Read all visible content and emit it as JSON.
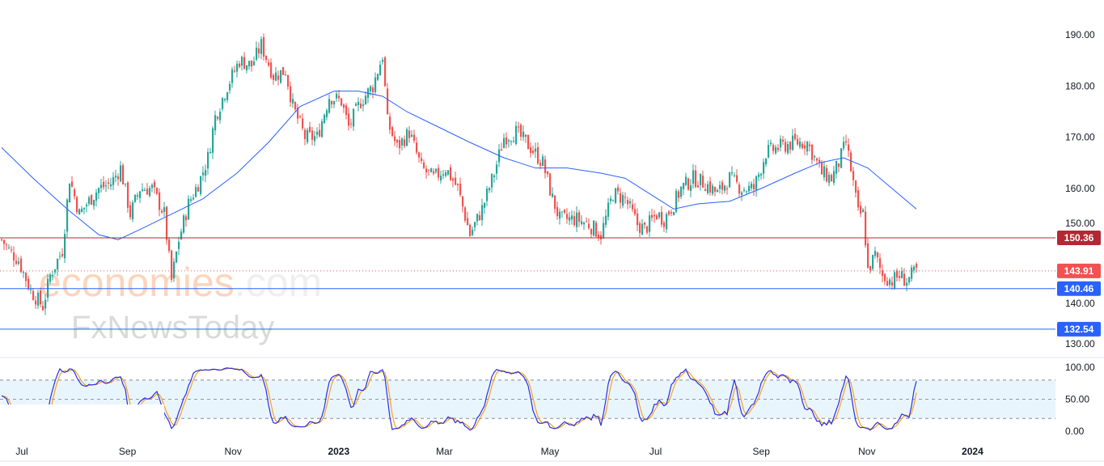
{
  "chart_data": {
    "type": "candlestick",
    "price_axis": {
      "min": 130,
      "max": 190,
      "ticks": [
        "190.00",
        "180.00",
        "170.00",
        "160.00",
        "150.00",
        "140.00",
        "130.00"
      ]
    },
    "time_axis": {
      "labels": [
        "Jul",
        "Sep",
        "Nov",
        "2023",
        "Mar",
        "May",
        "Jul",
        "Sep",
        "Nov",
        "2024"
      ],
      "bold": [
        "2023",
        "2024"
      ]
    },
    "close_keypoints": [
      [
        0,
        150
      ],
      [
        3,
        148
      ],
      [
        7,
        146
      ],
      [
        12,
        140
      ],
      [
        17,
        137
      ],
      [
        20,
        143
      ],
      [
        25,
        148
      ],
      [
        28,
        162
      ],
      [
        32,
        155
      ],
      [
        35,
        157
      ],
      [
        40,
        160
      ],
      [
        45,
        161
      ],
      [
        49,
        164
      ],
      [
        53,
        155
      ],
      [
        57,
        160
      ],
      [
        62,
        160
      ],
      [
        67,
        155
      ],
      [
        70,
        142
      ],
      [
        73,
        150
      ],
      [
        77,
        157
      ],
      [
        82,
        162
      ],
      [
        85,
        166
      ],
      [
        88,
        174
      ],
      [
        93,
        180
      ],
      [
        98,
        185
      ],
      [
        103,
        184
      ],
      [
        107,
        188
      ],
      [
        112,
        182
      ],
      [
        117,
        183
      ],
      [
        120,
        176
      ],
      [
        125,
        170
      ],
      [
        130,
        170
      ],
      [
        135,
        178
      ],
      [
        140,
        177
      ],
      [
        143,
        172
      ],
      [
        148,
        177
      ],
      [
        153,
        180
      ],
      [
        157,
        186
      ],
      [
        159,
        173
      ],
      [
        163,
        168
      ],
      [
        168,
        171
      ],
      [
        173,
        164
      ],
      [
        178,
        162
      ],
      [
        183,
        164
      ],
      [
        188,
        160
      ],
      [
        193,
        151
      ],
      [
        198,
        156
      ],
      [
        203,
        163
      ],
      [
        207,
        170
      ],
      [
        212,
        171
      ],
      [
        218,
        168
      ],
      [
        223,
        165
      ],
      [
        227,
        158
      ],
      [
        230,
        154
      ],
      [
        237,
        154
      ],
      [
        242,
        153
      ],
      [
        247,
        151
      ],
      [
        252,
        159
      ],
      [
        257,
        158
      ],
      [
        262,
        153
      ],
      [
        265,
        152
      ],
      [
        270,
        155
      ],
      [
        273,
        154
      ],
      [
        277,
        157
      ],
      [
        280,
        160
      ],
      [
        285,
        162
      ],
      [
        290,
        161
      ],
      [
        295,
        159
      ],
      [
        300,
        162
      ],
      [
        305,
        160
      ],
      [
        310,
        160
      ],
      [
        315,
        167
      ],
      [
        320,
        168
      ],
      [
        327,
        169
      ],
      [
        332,
        169
      ],
      [
        335,
        166
      ],
      [
        338,
        163
      ],
      [
        342,
        162
      ],
      [
        345,
        165
      ],
      [
        348,
        169
      ],
      [
        351,
        161
      ],
      [
        353,
        155
      ],
      [
        355,
        155
      ],
      [
        356,
        150
      ],
      [
        357,
        144
      ],
      [
        360,
        147
      ],
      [
        363,
        143
      ],
      [
        367,
        142
      ],
      [
        370,
        143
      ],
      [
        373,
        142
      ],
      [
        377,
        144
      ]
    ],
    "moving_average": {
      "name": "MA",
      "color": "#2962ff",
      "points": [
        [
          0,
          168
        ],
        [
          13,
          162
        ],
        [
          27,
          156
        ],
        [
          40,
          151
        ],
        [
          48,
          150
        ],
        [
          57,
          152
        ],
        [
          70,
          155
        ],
        [
          83,
          158
        ],
        [
          97,
          163
        ],
        [
          110,
          169
        ],
        [
          123,
          176
        ],
        [
          137,
          179
        ],
        [
          147,
          179
        ],
        [
          157,
          178
        ],
        [
          167,
          175
        ],
        [
          180,
          172
        ],
        [
          193,
          169
        ],
        [
          207,
          166
        ],
        [
          220,
          164
        ],
        [
          233,
          164
        ],
        [
          247,
          163
        ],
        [
          257,
          162
        ],
        [
          267,
          159
        ],
        [
          277,
          156
        ],
        [
          287,
          157
        ],
        [
          300,
          157.5
        ],
        [
          313,
          160
        ],
        [
          327,
          163
        ],
        [
          337,
          165
        ],
        [
          347,
          166
        ],
        [
          357,
          164
        ],
        [
          367,
          160
        ],
        [
          377,
          156
        ]
      ]
    },
    "horizontal_lines": [
      {
        "label": "150.36",
        "value": 150.36,
        "color": "#b22833",
        "style": "solid"
      },
      {
        "label": "143.91",
        "value": 143.91,
        "color": "#f05252",
        "style": "dotted"
      },
      {
        "label": "140.46",
        "value": 140.46,
        "color": "#2962ff",
        "style": "solid"
      },
      {
        "label": "132.54",
        "value": 132.54,
        "color": "#2962ff",
        "style": "solid"
      }
    ],
    "oscillator": {
      "type": "stochastic",
      "range": [
        0,
        100
      ],
      "ticks": [
        "100.00",
        "50.00",
        "0.00"
      ],
      "bands": [
        20,
        50,
        80
      ],
      "k_color": "#2a2ee6",
      "d_color": "#f7a21b"
    },
    "colors": {
      "up": "#26a69a",
      "down": "#ef5350"
    }
  },
  "watermark": {
    "line1a": "economies",
    "line1b": ".com",
    "line2": "FxNewsToday"
  }
}
